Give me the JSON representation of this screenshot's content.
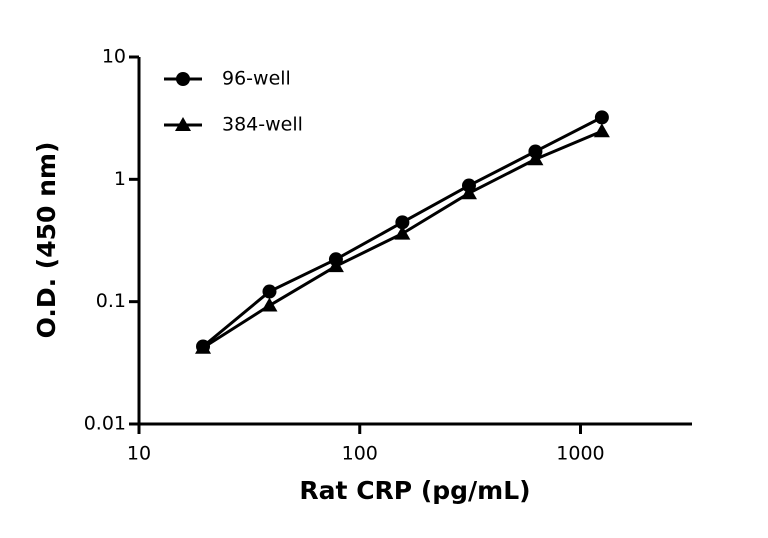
{
  "chart_data": {
    "type": "line",
    "xlabel": "Rat CRP (pg/mL)",
    "ylabel": "O.D. (450 nm)",
    "xscale": "log",
    "yscale": "log",
    "xlim": [
      10,
      3200
    ],
    "ylim": [
      0.01,
      10
    ],
    "xticks": [
      10,
      100,
      1000
    ],
    "yticks": [
      0.01,
      0.1,
      1,
      10
    ],
    "legend": "upper left",
    "x": [
      19.5,
      39,
      78,
      156,
      312.5,
      625,
      1250
    ],
    "series": [
      {
        "name": "96-well",
        "color": "#000000",
        "marker": "circle",
        "values": [
          0.043,
          0.121,
          0.222,
          0.445,
          0.89,
          1.69,
          3.21
        ]
      },
      {
        "name": "384-well",
        "color": "#000000",
        "marker": "triangle",
        "values": [
          0.042,
          0.093,
          0.195,
          0.36,
          0.77,
          1.46,
          2.47
        ]
      }
    ]
  }
}
